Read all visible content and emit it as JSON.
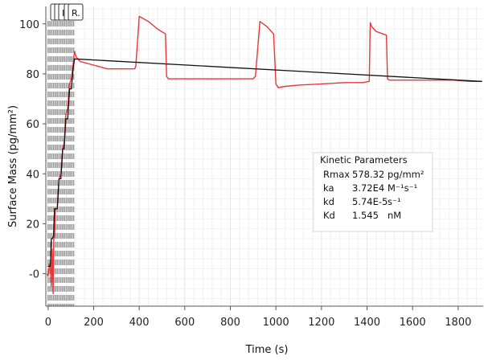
{
  "chart_data": {
    "type": "line",
    "xlabel": "Time (s)",
    "ylabel": "Surface Mass (pg/mm²)",
    "xlim": [
      -10,
      1910
    ],
    "ylim": [
      -13,
      107
    ],
    "xticks": [
      0,
      200,
      400,
      600,
      800,
      1000,
      1200,
      1400,
      1600,
      1800
    ],
    "xtick_labels": [
      "0",
      "200",
      "400",
      "600",
      "800",
      "1000",
      "1200",
      "1400",
      "1600",
      "1800"
    ],
    "yticks": [
      0,
      20,
      40,
      60,
      80,
      100
    ],
    "ytick_labels": [
      "-0",
      "20",
      "40",
      "60",
      "80",
      "100"
    ],
    "grid": true,
    "injection_markers_x": [
      0,
      8,
      16,
      24,
      32,
      40,
      48,
      56,
      64,
      72,
      80,
      88,
      96,
      104,
      112
    ],
    "marker_tabs": [
      "",
      "",
      "I",
      "",
      "R."
    ],
    "series": [
      {
        "color": "#e8373a",
        "x": [
          -5,
          0,
          4,
          6,
          10,
          14,
          18,
          22,
          25,
          28,
          32,
          40,
          48,
          56,
          64,
          70,
          78,
          86,
          94,
          102,
          108,
          112,
          116,
          122,
          140,
          180,
          220,
          260,
          300,
          340,
          360,
          370,
          380,
          385,
          400,
          440,
          480,
          515,
          520,
          528,
          540,
          580,
          620,
          700,
          780,
          860,
          880,
          893,
          900,
          910,
          930,
          960,
          990,
          1000,
          1010,
          1040,
          1100,
          1200,
          1300,
          1380,
          1410,
          1414,
          1420,
          1440,
          1470,
          1485,
          1490,
          1498,
          1510,
          1560,
          1620,
          1700,
          1780,
          1850,
          1880,
          1905
        ],
        "y": [
          0,
          -1,
          2,
          4,
          3,
          -5,
          10,
          -8,
          14,
          15,
          26,
          26,
          38,
          40,
          50,
          52,
          64,
          66,
          76,
          78,
          82,
          86,
          89,
          87,
          85,
          84,
          83,
          82,
          82,
          82,
          82,
          82,
          82,
          83,
          103,
          101,
          98,
          96,
          79,
          78,
          78,
          78,
          78,
          78,
          78,
          78,
          78,
          78,
          78,
          79,
          101,
          99,
          96,
          76,
          74.5,
          75,
          75.5,
          76,
          76.5,
          76.5,
          77,
          100.5,
          99,
          97,
          96,
          95.5,
          78,
          77.5,
          77.5,
          77.5,
          77.5,
          77.5,
          77.5,
          77,
          77,
          77
        ]
      },
      {
        "color": "#111111",
        "x": [
          -2,
          0,
          5,
          10,
          14,
          18,
          24,
          28,
          32,
          40,
          48,
          56,
          64,
          70,
          78,
          86,
          94,
          102,
          110,
          116,
          1905
        ],
        "y": [
          3,
          3,
          3,
          3,
          14,
          14,
          15,
          26,
          26,
          26,
          38,
          38,
          50,
          50,
          62,
          62,
          74,
          74,
          82,
          86,
          77
        ]
      }
    ],
    "annotation": {
      "title": "Kinetic Parameters",
      "rows": [
        {
          "name": "Rmax",
          "value": "578.32",
          "unit": "pg/mm²"
        },
        {
          "name": "ka",
          "value": "3.72E4",
          "unit": "M⁻¹s⁻¹"
        },
        {
          "name": "kd",
          "value": "5.74E-5",
          "unit": "s⁻¹"
        },
        {
          "name": "Kd",
          "value": "1.545",
          "unit": "nM"
        }
      ]
    }
  }
}
